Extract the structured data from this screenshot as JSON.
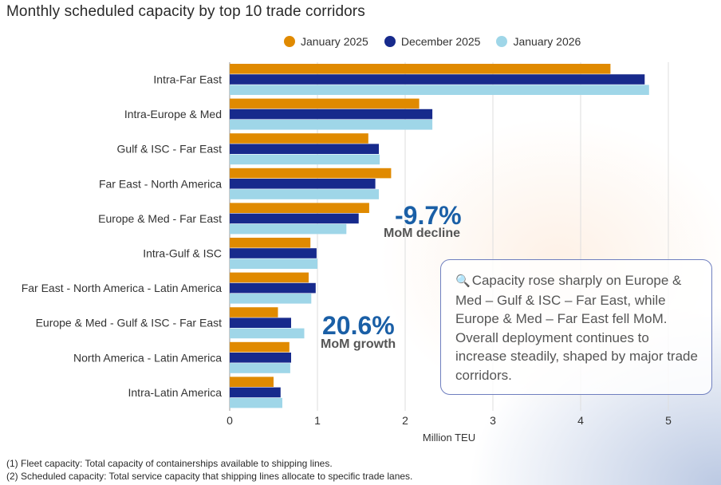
{
  "chart_data": {
    "type": "bar",
    "orientation": "horizontal",
    "title": "Monthly scheduled capacity by top 10 trade corridors",
    "xlabel": "Million TEU",
    "ylabel": "",
    "xlim": [
      0,
      5.4
    ],
    "xticks": [
      0,
      1,
      2,
      3,
      4,
      5
    ],
    "grid": true,
    "legend_position": "top-center",
    "categories": [
      "Intra-Far East",
      "Intra-Europe & Med",
      "Gulf & ISC - Far East",
      "Far East - North America",
      "Europe & Med - Far East",
      "Intra-Gulf & ISC",
      "Far East - North America - Latin America",
      "Europe & Med - Gulf & ISC - Far East",
      "North America - Latin America",
      "Intra-Latin America"
    ],
    "series": [
      {
        "name": "January 2025",
        "color": "#e08a00",
        "values": [
          4.34,
          2.16,
          1.58,
          1.84,
          1.59,
          0.92,
          0.9,
          0.55,
          0.68,
          0.5
        ]
      },
      {
        "name": "December 2025",
        "color": "#172a8c",
        "values": [
          4.73,
          2.31,
          1.7,
          1.66,
          1.47,
          0.99,
          0.98,
          0.7,
          0.7,
          0.58
        ]
      },
      {
        "name": "January 2026",
        "color": "#9fd6e8",
        "values": [
          4.78,
          2.31,
          1.71,
          1.7,
          1.33,
          1.0,
          0.93,
          0.85,
          0.69,
          0.6
        ]
      }
    ],
    "annotations": [
      {
        "value": "-9.7%",
        "label": "MoM decline",
        "corridor": "Europe & Med - Far East"
      },
      {
        "value": "20.6%",
        "label": "MoM growth",
        "corridor": "Europe & Med - Gulf & ISC - Far East"
      }
    ]
  },
  "note": {
    "icon": "magnifier-icon",
    "text": "Capacity rose sharply on Europe & Med – Gulf & ISC – Far East, while Europe & Med – Far East fell MoM. Overall deployment continues to increase steadily, shaped by major trade corridors."
  },
  "footnotes": [
    "(1) Fleet capacity: Total capacity of containerships available to shipping lines.",
    "(2) Scheduled capacity: Total service capacity that shipping lines allocate to specific trade lanes."
  ]
}
